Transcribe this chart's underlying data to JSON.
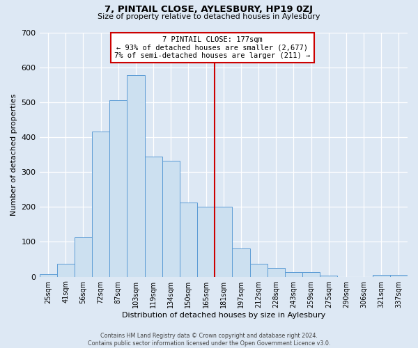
{
  "title": "7, PINTAIL CLOSE, AYLESBURY, HP19 0ZJ",
  "subtitle": "Size of property relative to detached houses in Aylesbury",
  "xlabel": "Distribution of detached houses by size in Aylesbury",
  "ylabel": "Number of detached properties",
  "categories": [
    "25sqm",
    "41sqm",
    "56sqm",
    "72sqm",
    "87sqm",
    "103sqm",
    "119sqm",
    "134sqm",
    "150sqm",
    "165sqm",
    "181sqm",
    "197sqm",
    "212sqm",
    "228sqm",
    "243sqm",
    "259sqm",
    "275sqm",
    "290sqm",
    "306sqm",
    "321sqm",
    "337sqm"
  ],
  "bar_values": [
    8,
    37,
    113,
    415,
    505,
    577,
    345,
    333,
    213,
    201,
    200,
    80,
    37,
    26,
    13,
    14,
    3,
    0,
    0,
    5,
    5
  ],
  "bar_color_fill": "#cce0f0",
  "bar_color_edge": "#5b9bd5",
  "vline_color": "#cc0000",
  "annotation_title": "7 PINTAIL CLOSE: 177sqm",
  "annotation_line1": "← 93% of detached houses are smaller (2,677)",
  "annotation_line2": "7% of semi-detached houses are larger (211) →",
  "annotation_box_color": "#cc0000",
  "ylim": [
    0,
    700
  ],
  "yticks": [
    0,
    100,
    200,
    300,
    400,
    500,
    600,
    700
  ],
  "bg_color": "#dde8f4",
  "plot_bg_color": "#dde8f4",
  "footer_line1": "Contains HM Land Registry data © Crown copyright and database right 2024.",
  "footer_line2": "Contains public sector information licensed under the Open Government Licence v3.0."
}
